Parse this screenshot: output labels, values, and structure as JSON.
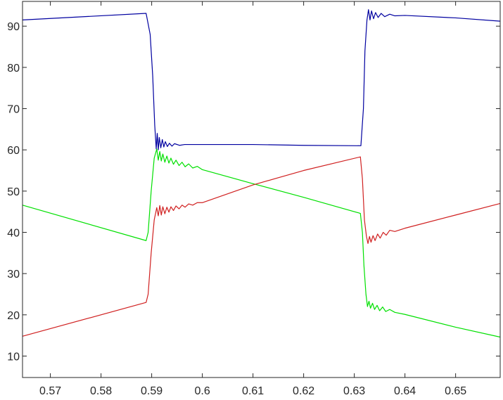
{
  "chart_data": {
    "type": "line",
    "title": "",
    "xlabel": "",
    "ylabel": "",
    "xlim": [
      0.5645,
      0.6588
    ],
    "ylim": [
      4.8,
      96.0
    ],
    "x_ticks": [
      0.57,
      0.58,
      0.59,
      0.6,
      0.61,
      0.62,
      0.63,
      0.64,
      0.65
    ],
    "x_tick_labels": [
      "0.57",
      "0.58",
      "0.59",
      "0.6",
      "0.61",
      "0.62",
      "0.63",
      "0.64",
      "0.65"
    ],
    "y_ticks": [
      10,
      20,
      30,
      40,
      50,
      60,
      70,
      80,
      90
    ],
    "y_tick_labels": [
      "10",
      "20",
      "30",
      "40",
      "50",
      "60",
      "70",
      "80",
      "90"
    ],
    "grid": false,
    "legend": "none",
    "series": [
      {
        "color": "#0000a0",
        "points": [
          [
            0.5645,
            91.5
          ],
          [
            0.5889,
            93.1
          ],
          [
            0.5897,
            88.0
          ],
          [
            0.5902,
            78.0
          ],
          [
            0.5906,
            66.0
          ],
          [
            0.5909,
            60.2
          ],
          [
            0.5911,
            64.0
          ],
          [
            0.5913,
            60.0
          ],
          [
            0.5915,
            63.0
          ],
          [
            0.5918,
            60.5
          ],
          [
            0.5921,
            62.5
          ],
          [
            0.5924,
            60.7
          ],
          [
            0.5927,
            62.0
          ],
          [
            0.5931,
            60.8
          ],
          [
            0.5935,
            61.6
          ],
          [
            0.594,
            60.9
          ],
          [
            0.5945,
            61.5
          ],
          [
            0.5955,
            61.1
          ],
          [
            0.5965,
            61.3
          ],
          [
            0.61,
            61.3
          ],
          [
            0.62,
            61.1
          ],
          [
            0.6313,
            61.0
          ],
          [
            0.6318,
            70.0
          ],
          [
            0.6321,
            84.0
          ],
          [
            0.6325,
            91.5
          ],
          [
            0.6328,
            94.0
          ],
          [
            0.6331,
            91.5
          ],
          [
            0.6334,
            93.7
          ],
          [
            0.6338,
            91.8
          ],
          [
            0.6342,
            93.3
          ],
          [
            0.6347,
            92.1
          ],
          [
            0.6353,
            93.1
          ],
          [
            0.636,
            92.3
          ],
          [
            0.637,
            92.9
          ],
          [
            0.638,
            92.5
          ],
          [
            0.64,
            92.6
          ],
          [
            0.65,
            92.0
          ],
          [
            0.6588,
            91.2
          ]
        ]
      },
      {
        "color": "#00e000",
        "points": [
          [
            0.5645,
            46.6
          ],
          [
            0.5889,
            38.0
          ],
          [
            0.5893,
            40.0
          ],
          [
            0.5899,
            50.0
          ],
          [
            0.5905,
            58.0
          ],
          [
            0.591,
            60.2
          ],
          [
            0.5913,
            57.5
          ],
          [
            0.5916,
            59.6
          ],
          [
            0.5919,
            57.3
          ],
          [
            0.5922,
            59.0
          ],
          [
            0.5926,
            57.0
          ],
          [
            0.593,
            58.5
          ],
          [
            0.5934,
            56.8
          ],
          [
            0.5938,
            58.0
          ],
          [
            0.5943,
            56.5
          ],
          [
            0.5948,
            57.5
          ],
          [
            0.5954,
            56.2
          ],
          [
            0.596,
            57.0
          ],
          [
            0.5966,
            55.9
          ],
          [
            0.5973,
            56.6
          ],
          [
            0.5981,
            55.6
          ],
          [
            0.599,
            56.0
          ],
          [
            0.6,
            55.2
          ],
          [
            0.61,
            51.8
          ],
          [
            0.62,
            48.5
          ],
          [
            0.6312,
            44.6
          ],
          [
            0.6316,
            40.0
          ],
          [
            0.6319,
            32.0
          ],
          [
            0.6323,
            25.0
          ],
          [
            0.6326,
            22.0
          ],
          [
            0.6329,
            23.3
          ],
          [
            0.6332,
            21.6
          ],
          [
            0.6336,
            22.8
          ],
          [
            0.634,
            21.3
          ],
          [
            0.6345,
            22.3
          ],
          [
            0.635,
            21.0
          ],
          [
            0.6356,
            21.9
          ],
          [
            0.6362,
            20.8
          ],
          [
            0.637,
            21.3
          ],
          [
            0.638,
            20.6
          ],
          [
            0.64,
            20.1
          ],
          [
            0.65,
            17.0
          ],
          [
            0.6588,
            14.6
          ]
        ]
      },
      {
        "color": "#d02020",
        "points": [
          [
            0.5645,
            14.8
          ],
          [
            0.5889,
            23.0
          ],
          [
            0.5893,
            25.0
          ],
          [
            0.5899,
            35.0
          ],
          [
            0.5905,
            43.0
          ],
          [
            0.591,
            46.0
          ],
          [
            0.5913,
            44.0
          ],
          [
            0.5916,
            46.5
          ],
          [
            0.5919,
            44.2
          ],
          [
            0.5922,
            46.2
          ],
          [
            0.5926,
            44.5
          ],
          [
            0.593,
            46.1
          ],
          [
            0.5934,
            44.9
          ],
          [
            0.5938,
            46.2
          ],
          [
            0.5943,
            45.3
          ],
          [
            0.5948,
            46.4
          ],
          [
            0.5954,
            45.7
          ],
          [
            0.596,
            46.6
          ],
          [
            0.5966,
            46.1
          ],
          [
            0.5973,
            46.9
          ],
          [
            0.5981,
            46.6
          ],
          [
            0.599,
            47.2
          ],
          [
            0.6,
            47.2
          ],
          [
            0.61,
            51.5
          ],
          [
            0.62,
            55.0
          ],
          [
            0.6312,
            58.3
          ],
          [
            0.6316,
            53.0
          ],
          [
            0.632,
            43.0
          ],
          [
            0.6324,
            39.0
          ],
          [
            0.6327,
            37.3
          ],
          [
            0.633,
            39.0
          ],
          [
            0.6333,
            37.6
          ],
          [
            0.6337,
            39.2
          ],
          [
            0.6341,
            38.0
          ],
          [
            0.6346,
            39.6
          ],
          [
            0.6351,
            38.6
          ],
          [
            0.6357,
            40.0
          ],
          [
            0.6363,
            39.3
          ],
          [
            0.637,
            40.5
          ],
          [
            0.638,
            40.2
          ],
          [
            0.64,
            41.0
          ],
          [
            0.65,
            44.2
          ],
          [
            0.6588,
            47.0
          ]
        ]
      }
    ]
  }
}
